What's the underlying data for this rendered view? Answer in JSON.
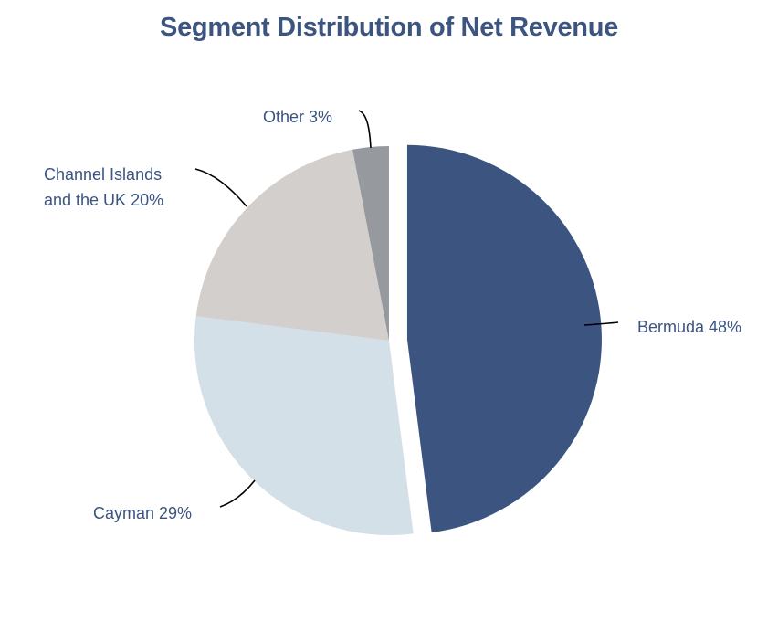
{
  "chart_data": {
    "type": "pie",
    "title": "Segment Distribution of Net Revenue",
    "slices": [
      {
        "name": "Bermuda",
        "value": 48,
        "label": "Bermuda 48%",
        "color": "#3b5480",
        "exploded": true
      },
      {
        "name": "Cayman",
        "value": 29,
        "label": "Cayman 29%",
        "color": "#d3e0e7",
        "exploded": false
      },
      {
        "name": "Channel Islands and the UK",
        "value": 20,
        "label_lines": [
          "Channel Islands",
          "and the UK 20%"
        ],
        "color": "#d3cfcd",
        "exploded": false
      },
      {
        "name": "Other",
        "value": 3,
        "label": "Other 3%",
        "color": "#969a9e",
        "exploded": false
      }
    ],
    "start_angle": "12 o'clock",
    "direction": "clockwise",
    "unit": "%"
  }
}
